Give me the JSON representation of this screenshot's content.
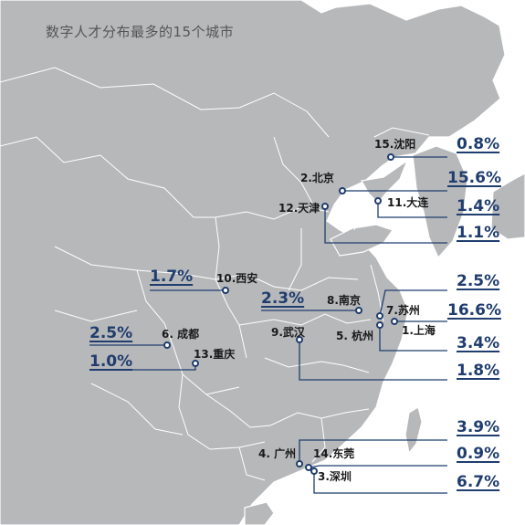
{
  "title": "数字人才分布最多的15个城市",
  "colors": {
    "land": "#b7b8ba",
    "border": "#ffffff",
    "sea": "#ffffff",
    "accent": "#1f3d6e",
    "leader": "#1f3d6e"
  },
  "cities": [
    {
      "rank": "1",
      "name": "上海",
      "label": "1.上海",
      "share": "16.6%"
    },
    {
      "rank": "2",
      "name": "北京",
      "label": "2.北京",
      "share": "15.6%"
    },
    {
      "rank": "3",
      "name": "深圳",
      "label": "3.深圳",
      "share": "6.7%"
    },
    {
      "rank": "4",
      "name": "广州",
      "label": "4. 广州",
      "share": "3.9%"
    },
    {
      "rank": "5",
      "name": "杭州",
      "label": "5. 杭州",
      "share": "3.4%"
    },
    {
      "rank": "6",
      "name": "成都",
      "label": "6. 成都",
      "share": "2.5%"
    },
    {
      "rank": "7",
      "name": "苏州",
      "label": "7.苏州",
      "share": "2.5%"
    },
    {
      "rank": "8",
      "name": "南京",
      "label": "8.南京",
      "share": "2.3%"
    },
    {
      "rank": "9",
      "name": "武汉",
      "label": "9.武汉",
      "share": "1.8%"
    },
    {
      "rank": "10",
      "name": "西安",
      "label": "10.西安",
      "share": "1.7%"
    },
    {
      "rank": "11",
      "name": "大连",
      "label": "11.大连",
      "share": "1.4%"
    },
    {
      "rank": "12",
      "name": "天津",
      "label": "12.天津",
      "share": "1.1%"
    },
    {
      "rank": "13",
      "name": "重庆",
      "label": "13.重庆",
      "share": "1.0%"
    },
    {
      "rank": "14",
      "name": "东莞",
      "label": "14.东莞",
      "share": "0.9%"
    },
    {
      "rank": "15",
      "name": "沈阳",
      "label": "15.沈阳",
      "share": "0.8%"
    }
  ]
}
